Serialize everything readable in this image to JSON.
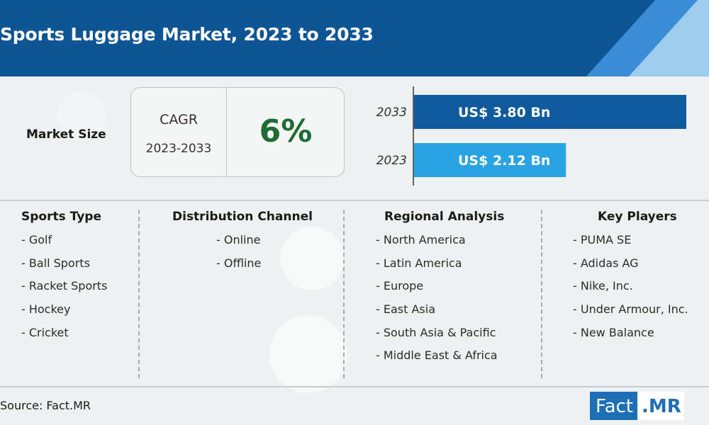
{
  "header": {
    "title": "Sports Luggage Market, 2023 to 2033"
  },
  "market_size": {
    "label": "Market Size",
    "cagr_word": "CAGR",
    "cagr_years": "2023-2033",
    "cagr_value": "6%"
  },
  "chart_data": {
    "type": "bar",
    "orientation": "horizontal",
    "categories": [
      "2033",
      "2023"
    ],
    "values": [
      3.8,
      2.12
    ],
    "value_labels": [
      "US$ 3.80 Bn",
      "US$ 2.12 Bn"
    ],
    "colors": [
      "#0f5a9c",
      "#29a3e1"
    ],
    "unit": "US$ Bn",
    "title": "",
    "xlabel": "",
    "ylabel": ""
  },
  "segments": [
    {
      "title": "Sports Type",
      "items": [
        "- Golf",
        "- Ball Sports",
        "- Racket Sports",
        "- Hockey",
        "- Cricket"
      ]
    },
    {
      "title": "Distribution Channel",
      "items": [
        "- Online",
        "- Offline"
      ]
    },
    {
      "title": "Regional Analysis",
      "items": [
        "- North America",
        "- Latin America",
        "- Europe",
        "- East Asia",
        "- South Asia & Pacific",
        "- Middle East & Africa"
      ]
    },
    {
      "title": "Key Players",
      "items": [
        "- PUMA SE",
        "- Adidas AG",
        "- Nike, Inc.",
        "- Under Armour, Inc.",
        "- New Balance"
      ]
    }
  ],
  "footer": {
    "source": "Source: Fact.MR",
    "logo_left": "Fact",
    "logo_right": ".MR"
  }
}
